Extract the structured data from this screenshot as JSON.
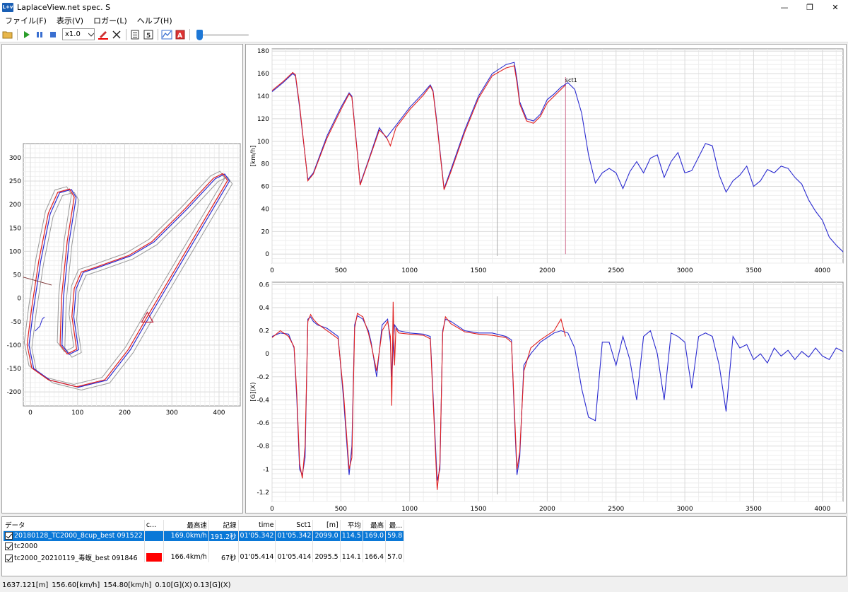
{
  "window": {
    "title": "LaplaceView.net spec. S",
    "icon_text": "L+v",
    "minimize": "—",
    "restore": "❐",
    "close": "✕"
  },
  "menu": [
    {
      "label": "ファイル(F)"
    },
    {
      "label": "表示(V)"
    },
    {
      "label": "ロガー(L)"
    },
    {
      "label": "ヘルプ(H)"
    }
  ],
  "toolbar": {
    "speed_value": "x1.0",
    "slider_position": 0.0
  },
  "colors": {
    "lap_blue": "#2b2bd0",
    "lap_red": "#e02020",
    "select_blue": "#0a78d7",
    "slider_blue": "#1e78d6"
  },
  "map_chart": {
    "xlim": [
      -15,
      445
    ],
    "ylim": [
      -230,
      330
    ],
    "xticks": [
      0,
      100,
      200,
      300,
      400
    ],
    "yticks": [
      300,
      250,
      200,
      150,
      100,
      50,
      0,
      -50,
      -100,
      -150,
      -200
    ]
  },
  "chart_data": [
    {
      "type": "line",
      "ylabel": "[km/h]",
      "xlim": [
        0,
        4150
      ],
      "ylim": [
        -8,
        182
      ],
      "xticks": [
        0,
        500,
        1000,
        1500,
        2000,
        2500,
        3000,
        3500,
        4000
      ],
      "yticks": [
        180,
        160,
        140,
        120,
        100,
        80,
        60,
        40,
        20,
        0
      ],
      "annotation": "sct1",
      "cursor_x": 1637,
      "sector_x": 2133,
      "series": [
        {
          "color": "blue",
          "x": [
            0,
            80,
            150,
            170,
            200,
            260,
            300,
            400,
            500,
            560,
            580,
            620,
            640,
            700,
            780,
            830,
            900,
            1000,
            1100,
            1150,
            1170,
            1200,
            1250,
            1300,
            1400,
            1500,
            1600,
            1700,
            1760,
            1780,
            1800,
            1850,
            1900,
            1950,
            2000,
            2050,
            2100,
            2150,
            2200,
            2250,
            2300,
            2350,
            2400,
            2450,
            2500,
            2550,
            2600,
            2650,
            2700,
            2750,
            2800,
            2850,
            2900,
            2950,
            3000,
            3050,
            3100,
            3150,
            3200,
            3250,
            3300,
            3350,
            3400,
            3450,
            3500,
            3550,
            3600,
            3650,
            3700,
            3750,
            3800,
            3850,
            3900,
            3950,
            4000,
            4050,
            4100,
            4150
          ],
          "y": [
            144,
            152,
            160,
            158,
            130,
            66,
            72,
            105,
            130,
            143,
            140,
            90,
            62,
            83,
            112,
            103,
            114,
            130,
            143,
            150,
            145,
            115,
            58,
            75,
            110,
            140,
            160,
            168,
            170,
            155,
            135,
            120,
            118,
            124,
            137,
            142,
            148,
            152,
            146,
            125,
            88,
            63,
            72,
            76,
            72,
            58,
            73,
            82,
            72,
            85,
            88,
            68,
            82,
            90,
            72,
            74,
            86,
            98,
            96,
            70,
            55,
            65,
            70,
            78,
            60,
            65,
            75,
            72,
            78,
            76,
            68,
            62,
            48,
            38,
            30,
            15,
            8,
            2
          ]
        },
        {
          "color": "red",
          "x": [
            0,
            80,
            150,
            170,
            200,
            260,
            300,
            400,
            500,
            560,
            580,
            620,
            640,
            700,
            780,
            830,
            860,
            870,
            900,
            1000,
            1100,
            1150,
            1170,
            1200,
            1250,
            1300,
            1400,
            1500,
            1600,
            1700,
            1760,
            1780,
            1800,
            1850,
            1900,
            1950,
            2000,
            2050,
            2100,
            2133
          ],
          "y": [
            145,
            153,
            161,
            159,
            132,
            65,
            71,
            103,
            128,
            142,
            139,
            89,
            61,
            82,
            110,
            104,
            96,
            100,
            112,
            128,
            141,
            149,
            144,
            113,
            57,
            73,
            108,
            138,
            158,
            165,
            167,
            152,
            133,
            118,
            116,
            122,
            134,
            140,
            146,
            150
          ]
        }
      ]
    },
    {
      "type": "line",
      "ylabel": "[G](X)",
      "xlim": [
        0,
        4150
      ],
      "ylim": [
        -1.28,
        0.62
      ],
      "xticks": [
        0,
        500,
        1000,
        1500,
        2000,
        2500,
        3000,
        3500,
        4000
      ],
      "yticks": [
        0.6,
        0.4,
        0.2,
        0,
        -0.2,
        -0.4,
        -0.6,
        -0.8,
        -1,
        -1.2
      ],
      "cursor_x": 1637,
      "series": [
        {
          "color": "blue",
          "x": [
            0,
            60,
            120,
            160,
            180,
            200,
            220,
            240,
            260,
            280,
            300,
            330,
            400,
            480,
            520,
            560,
            580,
            600,
            620,
            660,
            700,
            720,
            760,
            800,
            840,
            860,
            870,
            890,
            920,
            1000,
            1100,
            1150,
            1180,
            1200,
            1220,
            1240,
            1260,
            1300,
            1400,
            1500,
            1600,
            1700,
            1740,
            1760,
            1780,
            1800,
            1830,
            1880,
            1950,
            2050,
            2100,
            2150,
            2200,
            2250,
            2300,
            2350,
            2400,
            2450,
            2500,
            2550,
            2600,
            2650,
            2700,
            2750,
            2800,
            2850,
            2900,
            2950,
            3000,
            3050,
            3100,
            3150,
            3200,
            3250,
            3300,
            3350,
            3400,
            3450,
            3500,
            3550,
            3600,
            3650,
            3700,
            3750,
            3800,
            3850,
            3900,
            3950,
            4000,
            4050,
            4100,
            4150
          ],
          "y": [
            0.15,
            0.18,
            0.17,
            0.05,
            -0.4,
            -1.0,
            -1.05,
            -0.9,
            0.3,
            0.32,
            0.28,
            0.25,
            0.22,
            0.15,
            -0.4,
            -1.05,
            -0.8,
            0.25,
            0.33,
            0.3,
            0.2,
            0.1,
            -0.2,
            0.25,
            0.3,
            0.1,
            -0.2,
            0.25,
            0.2,
            0.18,
            0.17,
            0.15,
            -0.6,
            -1.1,
            -1.0,
            0.2,
            0.3,
            0.28,
            0.2,
            0.18,
            0.18,
            0.15,
            0.12,
            -0.5,
            -1.05,
            -0.9,
            -0.1,
            0.0,
            0.1,
            0.18,
            0.2,
            0.18,
            0.05,
            -0.3,
            -0.55,
            -0.58,
            0.1,
            0.1,
            -0.1,
            0.15,
            -0.05,
            -0.4,
            0.15,
            0.2,
            0.0,
            -0.4,
            0.18,
            0.15,
            0.1,
            -0.3,
            0.15,
            0.18,
            0.15,
            -0.1,
            -0.5,
            0.15,
            0.05,
            0.08,
            -0.05,
            0.0,
            -0.08,
            0.05,
            -0.02,
            0.03,
            -0.05,
            0.02,
            -0.03,
            0.05,
            -0.02,
            -0.05,
            0.05,
            0.02
          ]
        },
        {
          "color": "red",
          "x": [
            0,
            60,
            120,
            160,
            180,
            200,
            220,
            240,
            260,
            280,
            300,
            330,
            400,
            480,
            520,
            560,
            580,
            600,
            620,
            660,
            700,
            720,
            760,
            800,
            840,
            860,
            870,
            880,
            890,
            900,
            920,
            1000,
            1100,
            1150,
            1180,
            1200,
            1220,
            1240,
            1260,
            1300,
            1400,
            1500,
            1600,
            1700,
            1740,
            1760,
            1780,
            1800,
            1830,
            1880,
            1950,
            2050,
            2100,
            2133
          ],
          "y": [
            0.14,
            0.2,
            0.15,
            0.06,
            -0.35,
            -0.95,
            -1.08,
            -0.8,
            0.28,
            0.34,
            0.3,
            0.26,
            0.2,
            0.13,
            -0.35,
            -1.0,
            -0.9,
            0.22,
            0.35,
            0.32,
            0.18,
            0.08,
            -0.15,
            0.2,
            0.28,
            0.15,
            -0.45,
            0.45,
            -0.1,
            0.22,
            0.18,
            0.17,
            0.16,
            0.13,
            -0.65,
            -1.18,
            -0.95,
            0.18,
            0.32,
            0.26,
            0.19,
            0.17,
            0.16,
            0.14,
            0.1,
            -0.45,
            -1.0,
            -0.85,
            -0.15,
            0.05,
            0.12,
            0.2,
            0.3,
            0.15
          ]
        }
      ]
    }
  ],
  "table": {
    "headers": [
      "データ",
      "c...",
      "最高速",
      "記録",
      "time",
      "Sct1",
      "[m]",
      "平均",
      "最高",
      "最..."
    ],
    "rows": [
      {
        "name": "20180128_TC2000_8cup_best 091522",
        "color": "",
        "max_speed": "169.0km/h",
        "record": "191.2秒",
        "time": "01'05.342",
        "sct1": "01'05.342",
        "m": "2099.0",
        "avg": "114.5",
        "max": "169.0",
        "min": "59.8",
        "selected": true
      },
      {
        "name": "tc2000",
        "color": "",
        "max_speed": "",
        "record": "",
        "time": "",
        "sct1": "",
        "m": "",
        "avg": "",
        "max": "",
        "min": "",
        "selected": false
      },
      {
        "name": "tc2000_20210119_毒蝮_best 091846",
        "color": "#ff0000",
        "max_speed": "166.4km/h",
        "record": "67秒",
        "time": "01'05.414",
        "sct1": "01'05.414",
        "m": "2095.5",
        "avg": "114.1",
        "max": "166.4",
        "min": "57.0",
        "selected": false
      }
    ]
  },
  "status": {
    "distance": "1637.121[m]",
    "speed1": "156.60[km/h]",
    "speed2": "154.80[km/h]",
    "g_values": "0.10[G](X) 0.13[G](X)"
  }
}
